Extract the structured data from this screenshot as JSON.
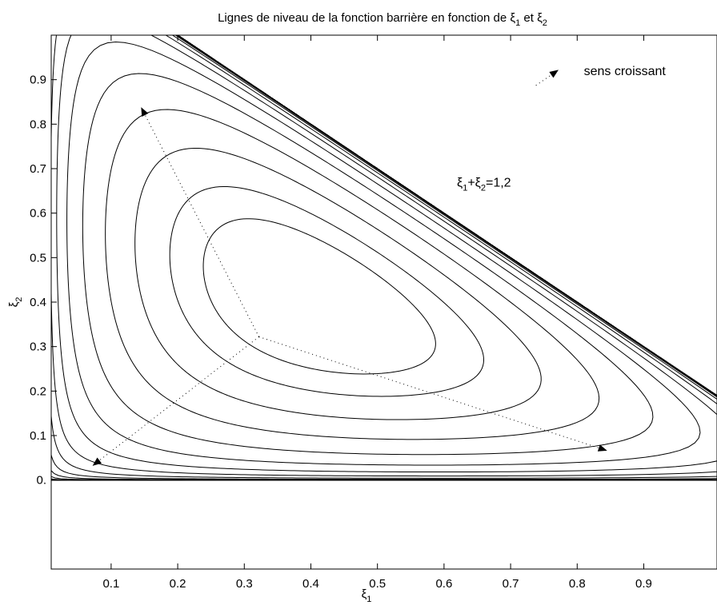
{
  "chart_data": {
    "type": "contour",
    "title": {
      "prefix": "Lignes de niveau de la fonction barrière en fonction de ",
      "var1": "ξ",
      "sub1": "1",
      "mid": " et ",
      "var2": "ξ",
      "sub2": "2"
    },
    "xlabel": {
      "var": "ξ",
      "sub": "1"
    },
    "ylabel": {
      "var": "ξ",
      "sub": "2"
    },
    "xlim": [
      0.01,
      1.01
    ],
    "ylim": [
      -0.2,
      1.0
    ],
    "x_ticks": [
      {
        "value": 0.1,
        "label": "0.1"
      },
      {
        "value": 0.2,
        "label": "0.2"
      },
      {
        "value": 0.3,
        "label": "0.3"
      },
      {
        "value": 0.4,
        "label": "0.4"
      },
      {
        "value": 0.5,
        "label": "0.5"
      },
      {
        "value": 0.6,
        "label": "0.6"
      },
      {
        "value": 0.7,
        "label": "0.7"
      },
      {
        "value": 0.8,
        "label": "0.8"
      },
      {
        "value": 0.9,
        "label": "0.9"
      }
    ],
    "y_ticks": [
      {
        "value": 0.0,
        "label": "0."
      },
      {
        "value": 0.1,
        "label": "0.1"
      },
      {
        "value": 0.2,
        "label": "0.2"
      },
      {
        "value": 0.3,
        "label": "0.3"
      },
      {
        "value": 0.4,
        "label": "0.4"
      },
      {
        "value": 0.5,
        "label": "0.5"
      },
      {
        "value": 0.6,
        "label": "0.6"
      },
      {
        "value": 0.7,
        "label": "0.7"
      },
      {
        "value": 0.8,
        "label": "0.8"
      },
      {
        "value": 0.9,
        "label": "0.9"
      }
    ],
    "center": [
      0.322,
      0.322
    ],
    "constraint_sum": 1.2,
    "contour_count": 70,
    "annotations": {
      "constraint_label": {
        "a": "ξ",
        "s1": "1",
        "plus": "+",
        "b": "ξ",
        "s2": "2",
        "rest": "=1,2",
        "x": 0.66,
        "y": 0.66
      },
      "direction_label": {
        "text": "sens croissant",
        "x": 0.81,
        "y": 0.91
      },
      "arrows": [
        {
          "from": [
            0.322,
            0.322
          ],
          "to": [
            0.145,
            0.838
          ]
        },
        {
          "from": [
            0.322,
            0.322
          ],
          "to": [
            0.845,
            0.066
          ]
        },
        {
          "from": [
            0.322,
            0.322
          ],
          "to": [
            0.072,
            0.032
          ]
        },
        {
          "from": [
            0.738,
            0.887
          ],
          "to": [
            0.772,
            0.922
          ]
        }
      ]
    },
    "grid": false,
    "legend": "none"
  }
}
